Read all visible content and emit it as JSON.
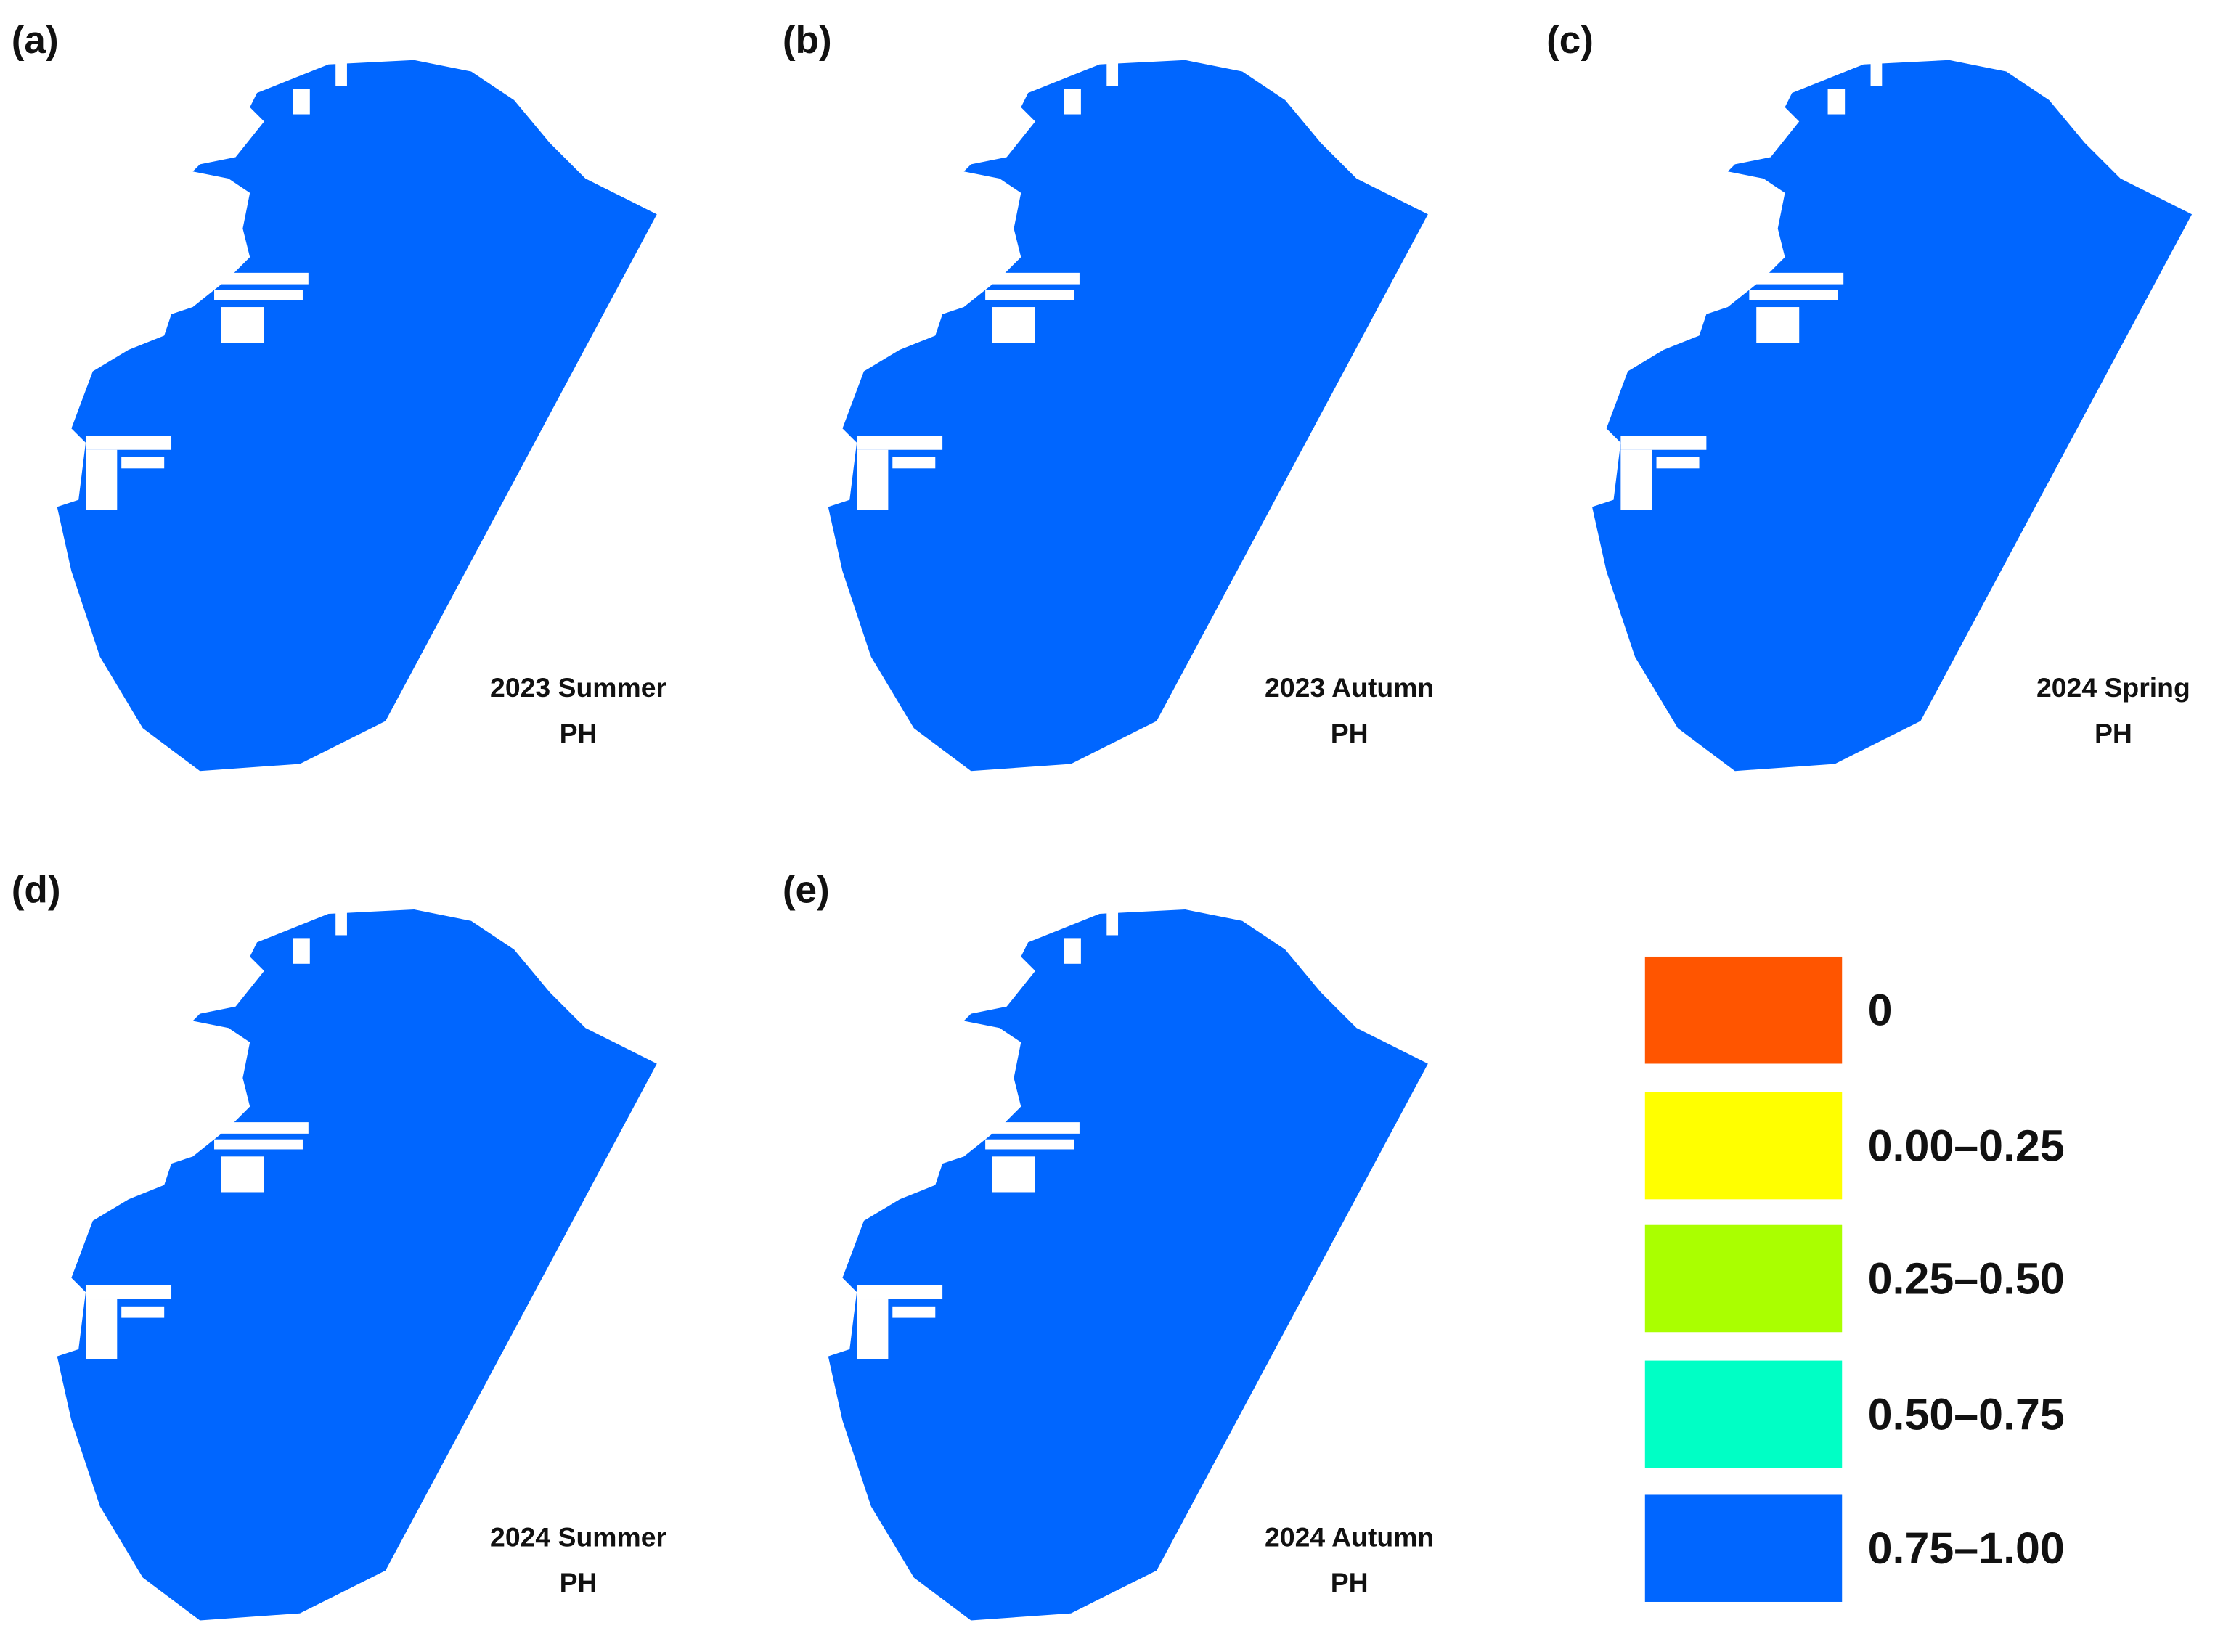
{
  "panels": [
    {
      "label": "(a)",
      "title": [
        "2023 Summer",
        "PH"
      ]
    },
    {
      "label": "(b)",
      "title": [
        "2023 Autumn",
        "PH"
      ]
    },
    {
      "label": "(c)",
      "title": [
        "2024 Spring",
        "PH"
      ]
    },
    {
      "label": "(d)",
      "title": [
        "2024 Summer",
        "PH"
      ]
    },
    {
      "label": "(e)",
      "title": [
        "2024 Autumn",
        "PH"
      ]
    }
  ],
  "legend": {
    "items": [
      {
        "label": "0",
        "color": "#ff5500"
      },
      {
        "label": "0.00–0.25",
        "color": "#ffff00"
      },
      {
        "label": "0.25–0.50",
        "color": "#aaff00"
      },
      {
        "label": "0.50–0.75",
        "color": "#00ffc5"
      },
      {
        "label": "0.75–1.00",
        "color": "#0066ff"
      }
    ]
  }
}
